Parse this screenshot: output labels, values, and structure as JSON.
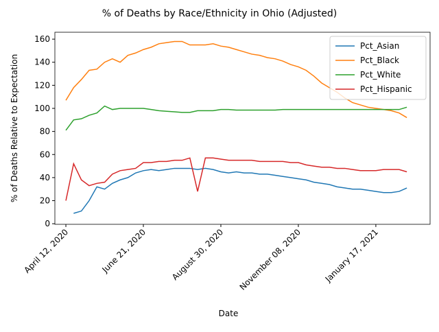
{
  "chart_data": {
    "type": "line",
    "title": "% of Deaths by Race/Ethnicity in Ohio (Adjusted)",
    "xlabel": "Date",
    "ylabel": "% of Deaths Relative to Expectation",
    "x": [
      "April 12, 2020",
      "April 19, 2020",
      "April 26, 2020",
      "May 03, 2020",
      "May 10, 2020",
      "May 17, 2020",
      "May 24, 2020",
      "May 31, 2020",
      "June 07, 2020",
      "June 14, 2020",
      "June 21, 2020",
      "June 28, 2020",
      "July 05, 2020",
      "July 12, 2020",
      "July 19, 2020",
      "July 26, 2020",
      "August 02, 2020",
      "August 09, 2020",
      "August 16, 2020",
      "August 23, 2020",
      "August 30, 2020",
      "September 06, 2020",
      "September 13, 2020",
      "September 20, 2020",
      "September 27, 2020",
      "October 04, 2020",
      "October 11, 2020",
      "October 18, 2020",
      "October 25, 2020",
      "November 01, 2020",
      "November 08, 2020",
      "November 15, 2020",
      "November 22, 2020",
      "November 29, 2020",
      "December 06, 2020",
      "December 13, 2020",
      "December 20, 2020",
      "December 27, 2020",
      "January 03, 2021",
      "January 10, 2021",
      "January 17, 2021",
      "January 24, 2021",
      "January 31, 2021",
      "February 07, 2021",
      "February 14, 2021"
    ],
    "xticks": [
      {
        "value": 0,
        "label": "April 12, 2020"
      },
      {
        "value": 10,
        "label": "June 21, 2020"
      },
      {
        "value": 20,
        "label": "August 30, 2020"
      },
      {
        "value": 30,
        "label": "November 08, 2020"
      },
      {
        "value": 40,
        "label": "January 17, 2021"
      }
    ],
    "series": [
      {
        "name": "Pct_Asian",
        "color": "#1f77b4",
        "values": [
          null,
          9,
          11,
          20,
          32,
          30,
          35,
          38,
          40,
          44,
          46,
          47,
          46,
          47,
          48,
          48,
          48,
          47,
          48,
          47,
          45,
          44,
          45,
          44,
          44,
          43,
          43,
          42,
          41,
          40,
          39,
          38,
          36,
          35,
          34,
          32,
          31,
          30,
          30,
          29,
          28,
          27,
          27,
          28,
          31
        ]
      },
      {
        "name": "Pct_Black",
        "color": "#ff7f0e",
        "values": [
          107,
          118,
          125,
          133,
          134,
          140,
          143,
          140,
          146,
          148,
          151,
          153,
          156,
          157,
          158,
          158,
          155,
          155,
          155,
          156,
          154,
          153,
          151,
          149,
          147,
          146,
          144,
          143,
          141,
          138,
          136,
          133,
          128,
          122,
          118,
          114,
          109,
          105,
          103,
          101,
          100,
          99,
          98,
          96,
          92
        ]
      },
      {
        "name": "Pct_White",
        "color": "#2ca02c",
        "values": [
          81,
          90,
          91,
          94,
          96,
          102,
          99,
          100,
          100,
          100,
          100,
          99,
          98,
          97.5,
          97,
          96.5,
          96.5,
          98,
          98,
          98,
          99,
          99,
          98.5,
          98.5,
          98.5,
          98.5,
          98.5,
          98.5,
          99,
          99,
          99,
          99,
          99,
          99,
          99,
          99,
          99,
          99,
          99,
          99,
          99,
          99,
          99,
          99,
          101
        ]
      },
      {
        "name": "Pct_Hispanic",
        "color": "#d62728",
        "values": [
          20,
          52,
          38,
          33,
          35,
          36,
          43,
          46,
          47,
          48,
          53,
          53,
          54,
          54,
          55,
          55,
          57,
          28,
          57,
          57,
          56,
          55,
          55,
          55,
          55,
          54,
          54,
          54,
          54,
          53,
          53,
          51,
          50,
          49,
          49,
          48,
          48,
          47,
          46,
          46,
          46,
          47,
          47,
          47,
          45
        ]
      }
    ],
    "ylim": [
      -0.5,
      166
    ],
    "yticks": [
      0,
      20,
      40,
      60,
      80,
      100,
      120,
      140,
      160
    ],
    "legend": "upper right"
  }
}
